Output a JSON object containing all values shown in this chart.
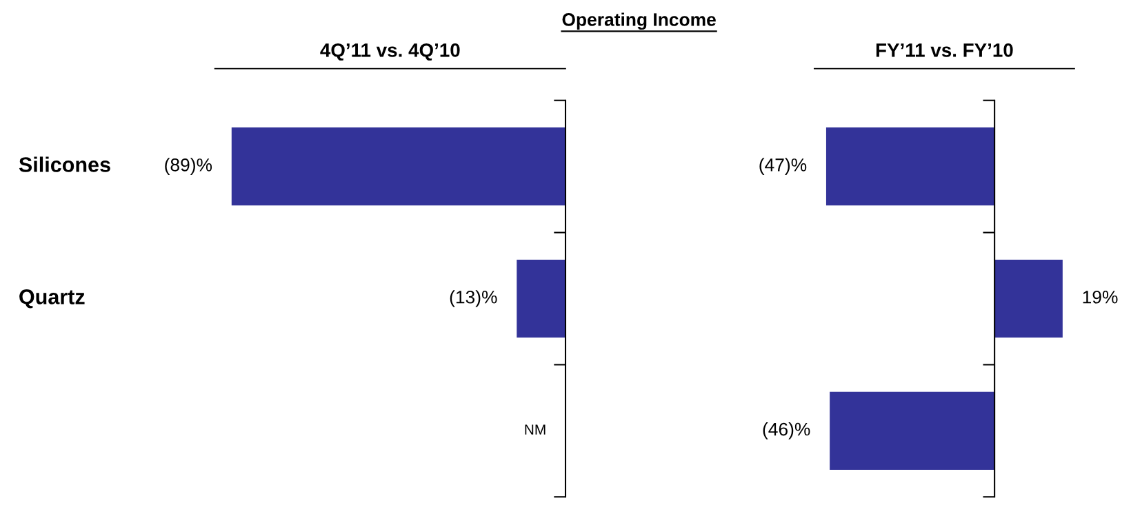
{
  "chart_data": [
    {
      "type": "bar",
      "orientation": "horizontal",
      "title": "Operating Income",
      "subtitle": "4Q’11 vs. 4Q’10",
      "categories": [
        "Silicones",
        "Quartz",
        null
      ],
      "values": [
        -89,
        -13,
        null
      ],
      "value_labels": [
        "(89)%",
        "(13)%",
        "NM"
      ],
      "color": "#333399",
      "tick_labels": "y",
      "grid": false,
      "legend": false
    },
    {
      "type": "bar",
      "orientation": "horizontal",
      "subtitle": "FY’11 vs. FY’10",
      "categories": [
        null,
        null,
        null
      ],
      "values": [
        -47,
        19,
        -46
      ],
      "value_labels": [
        "(47)%",
        "19%",
        "(46)%"
      ],
      "color": "#333399",
      "tick_labels": false,
      "grid": false,
      "legend": false
    }
  ]
}
